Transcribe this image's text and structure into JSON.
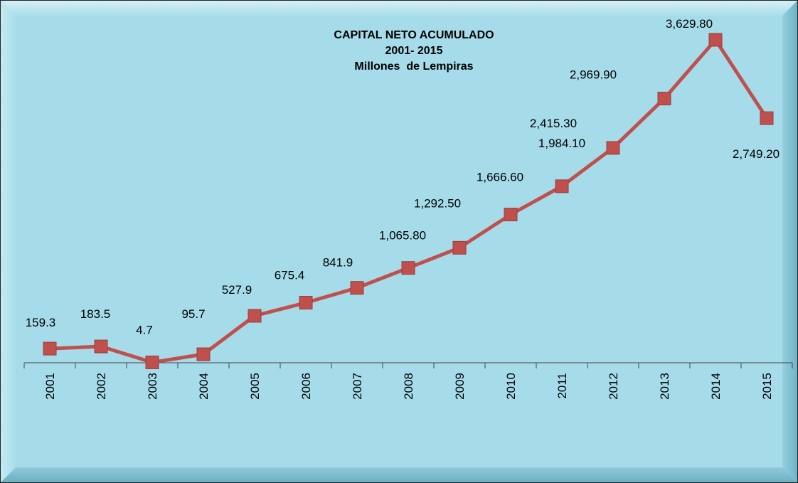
{
  "chart_data": {
    "type": "line",
    "title": "CAPITAL NETO ACUMULADO",
    "subtitle": [
      "2001- 2015",
      "Millones  de Lempiras"
    ],
    "categories": [
      "2001",
      "2002",
      "2003",
      "2004",
      "2005",
      "2006",
      "2007",
      "2008",
      "2009",
      "2010",
      "2011",
      "2012",
      "2013",
      "2014",
      "2015"
    ],
    "series": [
      {
        "name": "Capital Neto Acumulado",
        "color": "#c0504d",
        "values": [
          159.3,
          183.5,
          4.7,
          95.7,
          527.9,
          675.4,
          841.9,
          1065.8,
          1292.5,
          1666.6,
          1984.1,
          2415.3,
          2969.9,
          3629.8,
          2749.2
        ],
        "value_labels": [
          "159.3",
          "183.5",
          "4.7",
          "95.7",
          "527.9",
          "675.4",
          "841.9",
          "1,065.80",
          "1,292.50",
          "1,666.60",
          "1,984.10",
          "2,415.30",
          "2,969.90",
          "3,629.80",
          "2,749.20"
        ]
      }
    ]
  }
}
